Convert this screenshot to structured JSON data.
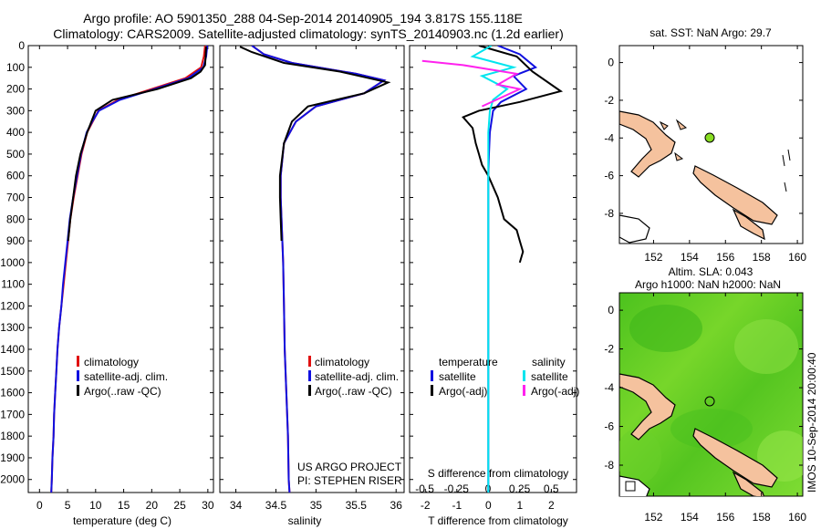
{
  "header": {
    "line1": "Argo profile: AO 5901350_288 04-Sep-2014 20140905_194 3.817S 155.118E",
    "line2": "Climatology: CARS2009. Satellite-adjusted climatology: synTS_20140903.nc (1.2d earlier)"
  },
  "colors": {
    "climatology": "#e01010",
    "satellite": "#1010e0",
    "argo": "#000000",
    "sat_salinity": "#00e5ee",
    "argo_salinity": "#ff22ee",
    "land": "#f5c29e",
    "sla_field": "#55cc22",
    "float_marker": "#88dd22"
  },
  "depth_axis": {
    "ticks": [
      "0",
      "100",
      "200",
      "300",
      "400",
      "500",
      "600",
      "700",
      "800",
      "900",
      "1000",
      "1100",
      "1200",
      "1300",
      "1400",
      "1500",
      "1600",
      "1700",
      "1800",
      "1900",
      "2000"
    ],
    "range": [
      0,
      2060
    ]
  },
  "temperature_panel": {
    "xlabel": "temperature (deg C)",
    "xticks": [
      "0",
      "5",
      "10",
      "15",
      "20",
      "25",
      "30"
    ],
    "legend": [
      "climatology",
      "satellite-adj. clim.",
      "Argo(..raw -QC)"
    ]
  },
  "salinity_panel": {
    "xlabel": "salinity",
    "xticks": [
      "34",
      "34.5",
      "35",
      "35.5",
      "36"
    ],
    "legend": [
      "climatology",
      "satellite-adj. clim.",
      "Argo(..raw -QC)"
    ],
    "credit1": "US ARGO PROJECT",
    "credit2": "PI: STEPHEN RISER"
  },
  "difference_panel": {
    "legend_temperature_title": "temperature",
    "legend_salinity_title": "salinity",
    "legend_items": [
      "satellite",
      "Argo(-adj)",
      "satellite",
      "Argo(-adj)"
    ],
    "s_axis_title": "S difference from climatology",
    "s_ticks": [
      "-0.5",
      "-0.25",
      "0",
      "0.25",
      "0.5"
    ],
    "t_ticks": [
      "-2",
      "-1",
      "0",
      "1",
      "2"
    ],
    "xlabel": "T difference from climatology"
  },
  "sst_map": {
    "title": "sat. SST: NaN Argo: 29.7",
    "lat_ticks": [
      "0",
      "-2",
      "-4",
      "-6",
      "-8"
    ],
    "lon_ticks": [
      "152",
      "154",
      "156",
      "158",
      "160"
    ]
  },
  "sla_map": {
    "title1": "Altim. SLA: 0.043",
    "title2": "Argo h1000: NaN h2000: NaN",
    "lat_ticks": [
      "0",
      "-2",
      "-4",
      "-6",
      "-8"
    ],
    "lon_ticks": [
      "152",
      "154",
      "156",
      "158",
      "160"
    ],
    "side_label": "IMOS 10-Sep-2014 20:00:40"
  },
  "float_position": {
    "lon": 155.118,
    "lat": -3.817
  },
  "chart_data": [
    {
      "type": "line",
      "name": "temperature profile",
      "xlabel": "temperature (deg C)",
      "ylim": [
        0,
        2060
      ],
      "xlim": [
        -2,
        31
      ],
      "series": [
        {
          "name": "climatology",
          "x": [
            29.5,
            29.3,
            28.8,
            26,
            20,
            14,
            10.5,
            9.5,
            8.5,
            7.5,
            6.8,
            6.1,
            5.5,
            5.1,
            4.7,
            4.3,
            3.9,
            3.5,
            3.2,
            3.0,
            2.8,
            2.6,
            2.5,
            2.3,
            2.2,
            2.1
          ],
          "y": [
            0,
            50,
            100,
            150,
            200,
            250,
            300,
            350,
            400,
            500,
            600,
            700,
            800,
            900,
            1000,
            1100,
            1200,
            1300,
            1400,
            1500,
            1600,
            1700,
            1800,
            1900,
            2000,
            2060
          ]
        },
        {
          "name": "satellite-adj. clim.",
          "x": [
            29.9,
            29.7,
            29.2,
            26.5,
            20.5,
            14.3,
            10.6,
            9.4,
            8.4,
            7.4,
            6.7,
            6.0,
            5.4,
            5.0,
            4.6,
            4.2,
            3.9,
            3.5,
            3.2,
            3.0,
            2.8,
            2.6,
            2.5,
            2.3,
            2.2,
            2.1
          ],
          "y": [
            0,
            50,
            100,
            150,
            200,
            250,
            300,
            350,
            400,
            500,
            600,
            700,
            800,
            900,
            1000,
            1100,
            1200,
            1300,
            1400,
            1500,
            1600,
            1700,
            1800,
            1900,
            2000,
            2060
          ]
        },
        {
          "name": "Argo(..raw -QC)",
          "x": [
            29.7,
            29.6,
            29.5,
            28.7,
            27,
            21,
            13,
            10,
            8.5,
            7.3,
            6.5,
            6.0,
            5.5,
            5.1
          ],
          "y": [
            5,
            50,
            90,
            120,
            150,
            200,
            250,
            300,
            400,
            500,
            600,
            700,
            800,
            900
          ]
        }
      ]
    },
    {
      "type": "line",
      "name": "salinity profile",
      "xlabel": "salinity",
      "ylim": [
        0,
        2060
      ],
      "xlim": [
        33.8,
        36.1
      ],
      "series": [
        {
          "name": "climatology",
          "x": [
            34.2,
            34.35,
            34.7,
            35.5,
            35.85,
            35.6,
            35.0,
            34.75,
            34.6,
            34.56,
            34.56,
            34.57,
            34.58,
            34.59,
            34.6,
            34.61,
            34.62,
            34.63,
            34.64,
            34.65,
            34.66,
            34.67
          ],
          "y": [
            0,
            40,
            80,
            130,
            160,
            220,
            280,
            350,
            450,
            600,
            700,
            800,
            900,
            1000,
            1200,
            1400,
            1500,
            1600,
            1700,
            1800,
            2000,
            2060
          ]
        },
        {
          "name": "satellite-adj. clim.",
          "x": [
            34.2,
            34.35,
            34.7,
            35.5,
            35.85,
            35.6,
            35.0,
            34.75,
            34.6,
            34.56,
            34.56,
            34.57,
            34.58,
            34.59,
            34.6,
            34.61,
            34.62,
            34.63,
            34.64,
            34.65,
            34.66,
            34.67
          ],
          "y": [
            0,
            40,
            80,
            130,
            160,
            220,
            280,
            350,
            450,
            600,
            700,
            800,
            900,
            1000,
            1200,
            1400,
            1500,
            1600,
            1700,
            1800,
            2000,
            2060
          ]
        },
        {
          "name": "Argo(..raw -QC)",
          "x": [
            34.05,
            34.2,
            34.6,
            35.3,
            35.9,
            35.6,
            34.9,
            34.7,
            34.6,
            34.55,
            34.55,
            34.56,
            34.57
          ],
          "y": [
            5,
            30,
            80,
            120,
            170,
            220,
            280,
            350,
            450,
            600,
            700,
            800,
            900
          ]
        }
      ]
    },
    {
      "type": "line",
      "name": "difference from climatology",
      "xlabel": "T difference from climatology",
      "ylim": [
        0,
        2060
      ],
      "xlim": [
        -2.5,
        2.8
      ],
      "series": [
        {
          "name": "satellite (temperature)",
          "x": [
            0.3,
            1.0,
            1.5,
            0.8,
            1.2,
            0.4,
            0.15,
            0.05,
            0.02,
            0,
            0,
            0,
            0,
            0,
            0,
            0,
            0,
            0,
            0,
            0,
            0,
            0
          ],
          "y": [
            0,
            40,
            100,
            140,
            200,
            260,
            300,
            400,
            500,
            600,
            700,
            800,
            900,
            1000,
            1200,
            1400,
            1500,
            1600,
            1700,
            1800,
            2000,
            2060
          ]
        },
        {
          "name": "Argo(-adj) (temperature)",
          "x": [
            -0.3,
            0.9,
            1.4,
            2.3,
            1.0,
            -0.3,
            -0.8,
            -0.5,
            -0.4,
            -0.3,
            -0.2,
            0,
            0.3,
            0.5,
            0.9,
            1.0,
            1.1,
            1.0
          ],
          "y": [
            0,
            50,
            120,
            210,
            260,
            300,
            330,
            380,
            450,
            500,
            550,
            600,
            700,
            800,
            850,
            900,
            950,
            1000
          ]
        },
        {
          "name": "satellite (salinity)",
          "x": [
            0.1,
            -0.5,
            0.8,
            -0.2,
            0.6,
            0.15,
            0.05,
            0,
            0,
            0,
            0,
            0,
            0,
            0,
            0,
            0
          ],
          "y": [
            0,
            50,
            100,
            140,
            200,
            250,
            300,
            400,
            600,
            800,
            1000,
            1200,
            1400,
            1600,
            1800,
            2060
          ]
        },
        {
          "name": "Argo(-adj) (salinity)",
          "x": [
            -2.1,
            -0.8,
            0.9,
            0.3,
            1.0,
            -0.2
          ],
          "y": [
            70,
            90,
            130,
            180,
            200,
            280
          ]
        }
      ]
    }
  ]
}
